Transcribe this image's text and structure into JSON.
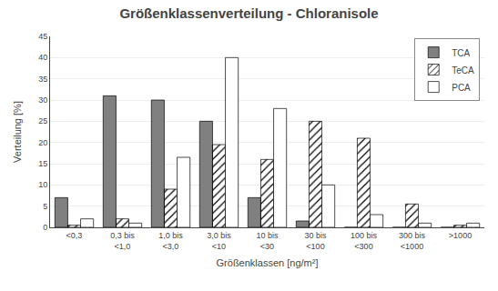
{
  "chart_data": {
    "type": "bar",
    "title": "Größenklassenverteilung - Chloranisole",
    "x_label": "Größenklassen [ng/m²]",
    "y_label": "Verteilung [%]",
    "categories": [
      "<0,3",
      "0,3 bis\n<1,0",
      "1,0 bis\n<3,0",
      "3,0 bis\n<10",
      "10 bis\n<30",
      "30 bis\n<100",
      "100 bis\n<300",
      "300 bis\n<1000",
      ">1000"
    ],
    "series": [
      {
        "name": "TCA",
        "color": "#808080",
        "values": [
          7,
          31,
          30,
          25,
          7,
          1.5,
          0,
          0,
          0
        ]
      },
      {
        "name": "TeCA",
        "color": "#a0a0a0",
        "values": [
          0.5,
          2,
          9,
          19.5,
          16,
          25,
          21,
          5.5,
          0.5
        ]
      },
      {
        "name": "PCA",
        "color": "#ffffff",
        "values": [
          2,
          1,
          16.5,
          40,
          28,
          10,
          3,
          1,
          1
        ]
      }
    ],
    "ylim": [
      0,
      45
    ],
    "yticks": [
      0,
      5,
      10,
      15,
      20,
      25,
      30,
      35,
      40,
      45
    ],
    "grid": true,
    "legend": "upper right"
  }
}
